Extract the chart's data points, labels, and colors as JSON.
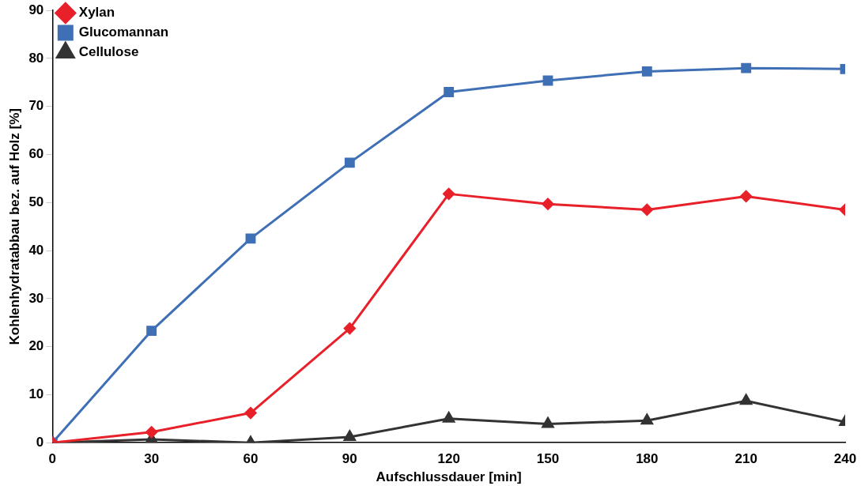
{
  "chart_data": {
    "type": "line",
    "xlabel": "Aufschlussdauer [min]",
    "ylabel": "Kohlenhydratabbau bez. auf Holz [%]",
    "x": [
      0,
      30,
      60,
      90,
      120,
      150,
      180,
      210,
      240
    ],
    "series": [
      {
        "name": "Xylan",
        "color": "#e8202a",
        "marker": "diamond",
        "values": [
          0,
          2.2,
          6.2,
          23.8,
          51.8,
          49.7,
          48.5,
          51.3,
          48.5
        ]
      },
      {
        "name": "Glucomannan",
        "color": "#3f6fb5",
        "marker": "square",
        "values": [
          0,
          23.3,
          42.5,
          58.3,
          73.0,
          75.4,
          77.3,
          78.0,
          77.8
        ]
      },
      {
        "name": "Cellulose",
        "color": "#333333",
        "marker": "triangle",
        "values": [
          0,
          0.7,
          0,
          1.2,
          5.0,
          3.9,
          4.6,
          8.7,
          4.3
        ]
      }
    ],
    "xlim": [
      0,
      240
    ],
    "xticks": [
      0,
      30,
      60,
      90,
      120,
      150,
      180,
      210,
      240
    ],
    "ylim": [
      0,
      90
    ],
    "yticks": [
      0,
      10,
      20,
      30,
      40,
      50,
      60,
      70,
      80,
      90
    ],
    "grid": false,
    "legend": "top left",
    "line_style": "solid"
  }
}
